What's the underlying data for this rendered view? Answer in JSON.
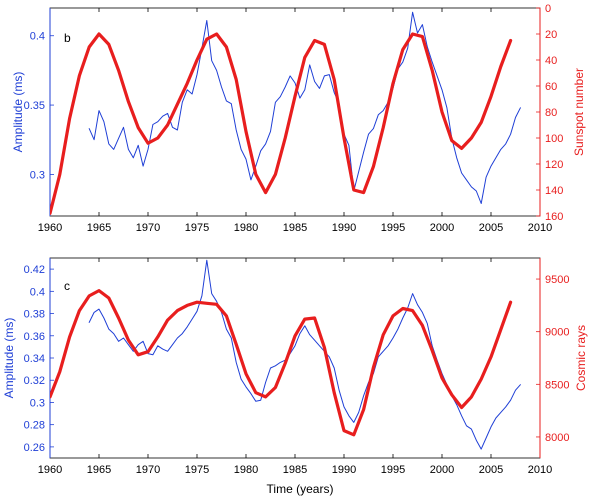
{
  "figure": {
    "xlabel": "Time (years)"
  },
  "chart_data": [
    {
      "panel_label": "b",
      "type": "line",
      "xlim": [
        1960,
        2010
      ],
      "x_ticks": [
        1960,
        1965,
        1970,
        1975,
        1980,
        1985,
        1990,
        1995,
        2000,
        2005,
        2010
      ],
      "left_axis": {
        "label": "Amplitude (ms)",
        "color": "#1f3fd6",
        "lim": [
          0.27,
          0.42
        ],
        "ticks": [
          0.3,
          0.35,
          0.4
        ],
        "tick_labels": [
          "0.3",
          "0.35",
          "0.4"
        ]
      },
      "right_axis": {
        "label": "Sunspot number",
        "color": "#e81e1e",
        "lim": [
          0,
          160
        ],
        "inverted": true,
        "ticks": [
          0,
          20,
          40,
          60,
          80,
          100,
          120,
          140,
          160
        ],
        "tick_labels": [
          "0",
          "20",
          "40",
          "60",
          "80",
          "100",
          "120",
          "140",
          "160"
        ]
      },
      "series": [
        {
          "axis": "left",
          "color": "#1f3fd6",
          "x": [
            1964.0,
            1964.5,
            1965.0,
            1965.5,
            1966.0,
            1966.5,
            1967.0,
            1967.5,
            1968.0,
            1968.5,
            1969.0,
            1969.5,
            1970.0,
            1970.5,
            1971.0,
            1971.5,
            1972.0,
            1972.5,
            1973.0,
            1973.5,
            1974.0,
            1974.5,
            1975.0,
            1975.5,
            1976.0,
            1976.5,
            1977.0,
            1977.5,
            1978.0,
            1978.5,
            1979.0,
            1979.5,
            1980.0,
            1980.5,
            1981.0,
            1981.5,
            1982.0,
            1982.5,
            1983.0,
            1983.5,
            1984.0,
            1984.5,
            1985.0,
            1985.5,
            1986.0,
            1986.5,
            1987.0,
            1987.5,
            1988.0,
            1988.5,
            1989.0,
            1989.5,
            1990.0,
            1990.5,
            1991.0,
            1991.5,
            1992.0,
            1992.5,
            1993.0,
            1993.5,
            1994.0,
            1994.5,
            1995.0,
            1995.5,
            1996.0,
            1996.5,
            1997.0,
            1997.5,
            1998.0,
            1998.5,
            1999.0,
            1999.5,
            2000.0,
            2000.5,
            2001.0,
            2001.5,
            2002.0,
            2002.5,
            2003.0,
            2003.5,
            2004.0,
            2004.5,
            2005.0,
            2005.5,
            2006.0,
            2006.5,
            2007.0,
            2007.5,
            2008.0
          ],
          "y": [
            0.333,
            0.325,
            0.346,
            0.338,
            0.322,
            0.318,
            0.326,
            0.334,
            0.318,
            0.312,
            0.321,
            0.306,
            0.318,
            0.336,
            0.338,
            0.342,
            0.344,
            0.334,
            0.332,
            0.352,
            0.361,
            0.358,
            0.372,
            0.391,
            0.411,
            0.382,
            0.375,
            0.363,
            0.353,
            0.351,
            0.332,
            0.318,
            0.311,
            0.296,
            0.306,
            0.317,
            0.322,
            0.331,
            0.352,
            0.356,
            0.363,
            0.371,
            0.366,
            0.355,
            0.361,
            0.379,
            0.367,
            0.362,
            0.371,
            0.372,
            0.359,
            0.351,
            0.329,
            0.321,
            0.288,
            0.302,
            0.316,
            0.329,
            0.333,
            0.343,
            0.346,
            0.352,
            0.362,
            0.376,
            0.381,
            0.391,
            0.417,
            0.402,
            0.408,
            0.392,
            0.381,
            0.371,
            0.361,
            0.348,
            0.326,
            0.312,
            0.301,
            0.296,
            0.291,
            0.288,
            0.279,
            0.298,
            0.306,
            0.312,
            0.318,
            0.322,
            0.329,
            0.341,
            0.348
          ]
        },
        {
          "axis": "right",
          "color": "#e81e1e",
          "x": [
            1960.0,
            1961.0,
            1962.0,
            1963.0,
            1964.0,
            1965.0,
            1966.0,
            1967.0,
            1968.0,
            1969.0,
            1970.0,
            1971.0,
            1972.0,
            1973.0,
            1974.0,
            1975.0,
            1976.0,
            1977.0,
            1978.0,
            1979.0,
            1980.0,
            1981.0,
            1982.0,
            1983.0,
            1984.0,
            1985.0,
            1986.0,
            1987.0,
            1988.0,
            1989.0,
            1990.0,
            1991.0,
            1992.0,
            1993.0,
            1994.0,
            1995.0,
            1996.0,
            1997.0,
            1998.0,
            1999.0,
            2000.0,
            2001.0,
            2002.0,
            2003.0,
            2004.0,
            2005.0,
            2006.0,
            2007.0
          ],
          "y": [
            158,
            128,
            85,
            52,
            30,
            20,
            28,
            48,
            72,
            92,
            104,
            100,
            90,
            74,
            58,
            40,
            24,
            20,
            30,
            55,
            95,
            128,
            142,
            128,
            100,
            68,
            38,
            25,
            28,
            55,
            100,
            140,
            142,
            122,
            92,
            58,
            32,
            20,
            22,
            48,
            80,
            102,
            108,
            100,
            88,
            68,
            45,
            25
          ]
        }
      ]
    },
    {
      "panel_label": "c",
      "type": "line",
      "xlim": [
        1960,
        2010
      ],
      "x_ticks": [
        1960,
        1965,
        1970,
        1975,
        1980,
        1985,
        1990,
        1995,
        2000,
        2005,
        2010
      ],
      "left_axis": {
        "label": "Amplitude (ms)",
        "color": "#1f3fd6",
        "lim": [
          0.25,
          0.43
        ],
        "ticks": [
          0.26,
          0.28,
          0.3,
          0.32,
          0.34,
          0.36,
          0.38,
          0.4,
          0.42
        ],
        "tick_labels": [
          "0.26",
          "0.28",
          "0.3",
          "0.32",
          "0.34",
          "0.36",
          "0.38",
          "0.4",
          "0.42"
        ]
      },
      "right_axis": {
        "label": "Cosmic rays",
        "color": "#e81e1e",
        "lim": [
          7800,
          9700
        ],
        "inverted": false,
        "ticks": [
          8000,
          8500,
          9000,
          9500
        ],
        "tick_labels": [
          "8000",
          "8500",
          "9000",
          "9500"
        ]
      },
      "series": [
        {
          "axis": "left",
          "color": "#1f3fd6",
          "x": [
            1964.0,
            1964.5,
            1965.0,
            1965.5,
            1966.0,
            1966.5,
            1967.0,
            1967.5,
            1968.0,
            1968.5,
            1969.0,
            1969.5,
            1970.0,
            1970.5,
            1971.0,
            1971.5,
            1972.0,
            1972.5,
            1973.0,
            1973.5,
            1974.0,
            1974.5,
            1975.0,
            1975.5,
            1976.0,
            1976.5,
            1977.0,
            1977.5,
            1978.0,
            1978.5,
            1979.0,
            1979.5,
            1980.0,
            1980.5,
            1981.0,
            1981.5,
            1982.0,
            1982.5,
            1983.0,
            1983.5,
            1984.0,
            1984.5,
            1985.0,
            1985.5,
            1986.0,
            1986.5,
            1987.0,
            1987.5,
            1988.0,
            1988.5,
            1989.0,
            1989.5,
            1990.0,
            1990.5,
            1991.0,
            1991.5,
            1992.0,
            1992.5,
            1993.0,
            1993.5,
            1994.0,
            1994.5,
            1995.0,
            1995.5,
            1996.0,
            1996.5,
            1997.0,
            1997.5,
            1998.0,
            1998.5,
            1999.0,
            1999.5,
            2000.0,
            2000.5,
            2001.0,
            2001.5,
            2002.0,
            2002.5,
            2003.0,
            2003.5,
            2004.0,
            2004.5,
            2005.0,
            2005.5,
            2006.0,
            2006.5,
            2007.0,
            2007.5,
            2008.0
          ],
          "y": [
            0.372,
            0.381,
            0.384,
            0.376,
            0.366,
            0.362,
            0.355,
            0.358,
            0.352,
            0.346,
            0.352,
            0.355,
            0.344,
            0.343,
            0.351,
            0.348,
            0.346,
            0.352,
            0.358,
            0.362,
            0.368,
            0.375,
            0.382,
            0.396,
            0.428,
            0.398,
            0.391,
            0.381,
            0.366,
            0.358,
            0.336,
            0.321,
            0.314,
            0.308,
            0.301,
            0.302,
            0.318,
            0.331,
            0.333,
            0.336,
            0.338,
            0.344,
            0.351,
            0.362,
            0.369,
            0.361,
            0.356,
            0.351,
            0.346,
            0.341,
            0.331,
            0.311,
            0.296,
            0.288,
            0.282,
            0.291,
            0.306,
            0.318,
            0.326,
            0.341,
            0.346,
            0.351,
            0.358,
            0.366,
            0.376,
            0.385,
            0.398,
            0.388,
            0.381,
            0.371,
            0.351,
            0.338,
            0.326,
            0.316,
            0.306,
            0.298,
            0.288,
            0.279,
            0.276,
            0.266,
            0.258,
            0.268,
            0.278,
            0.286,
            0.291,
            0.296,
            0.302,
            0.311,
            0.316
          ]
        },
        {
          "axis": "right",
          "color": "#e81e1e",
          "x": [
            1960.0,
            1961.0,
            1962.0,
            1963.0,
            1964.0,
            1965.0,
            1966.0,
            1967.0,
            1968.0,
            1969.0,
            1970.0,
            1971.0,
            1972.0,
            1973.0,
            1974.0,
            1975.0,
            1976.0,
            1977.0,
            1978.0,
            1979.0,
            1980.0,
            1981.0,
            1982.0,
            1983.0,
            1984.0,
            1985.0,
            1986.0,
            1987.0,
            1988.0,
            1989.0,
            1990.0,
            1991.0,
            1992.0,
            1993.0,
            1994.0,
            1995.0,
            1996.0,
            1997.0,
            1998.0,
            1999.0,
            2000.0,
            2001.0,
            2002.0,
            2003.0,
            2004.0,
            2005.0,
            2006.0,
            2007.0
          ],
          "y": [
            8380,
            8620,
            8950,
            9200,
            9340,
            9390,
            9320,
            9130,
            8920,
            8780,
            8810,
            8950,
            9110,
            9200,
            9250,
            9280,
            9270,
            9260,
            9150,
            8880,
            8600,
            8420,
            8380,
            8470,
            8700,
            8960,
            9120,
            9130,
            8850,
            8420,
            8060,
            8020,
            8260,
            8660,
            8970,
            9150,
            9220,
            9200,
            9060,
            8820,
            8560,
            8400,
            8280,
            8380,
            8550,
            8760,
            9020,
            9280
          ]
        }
      ]
    }
  ]
}
